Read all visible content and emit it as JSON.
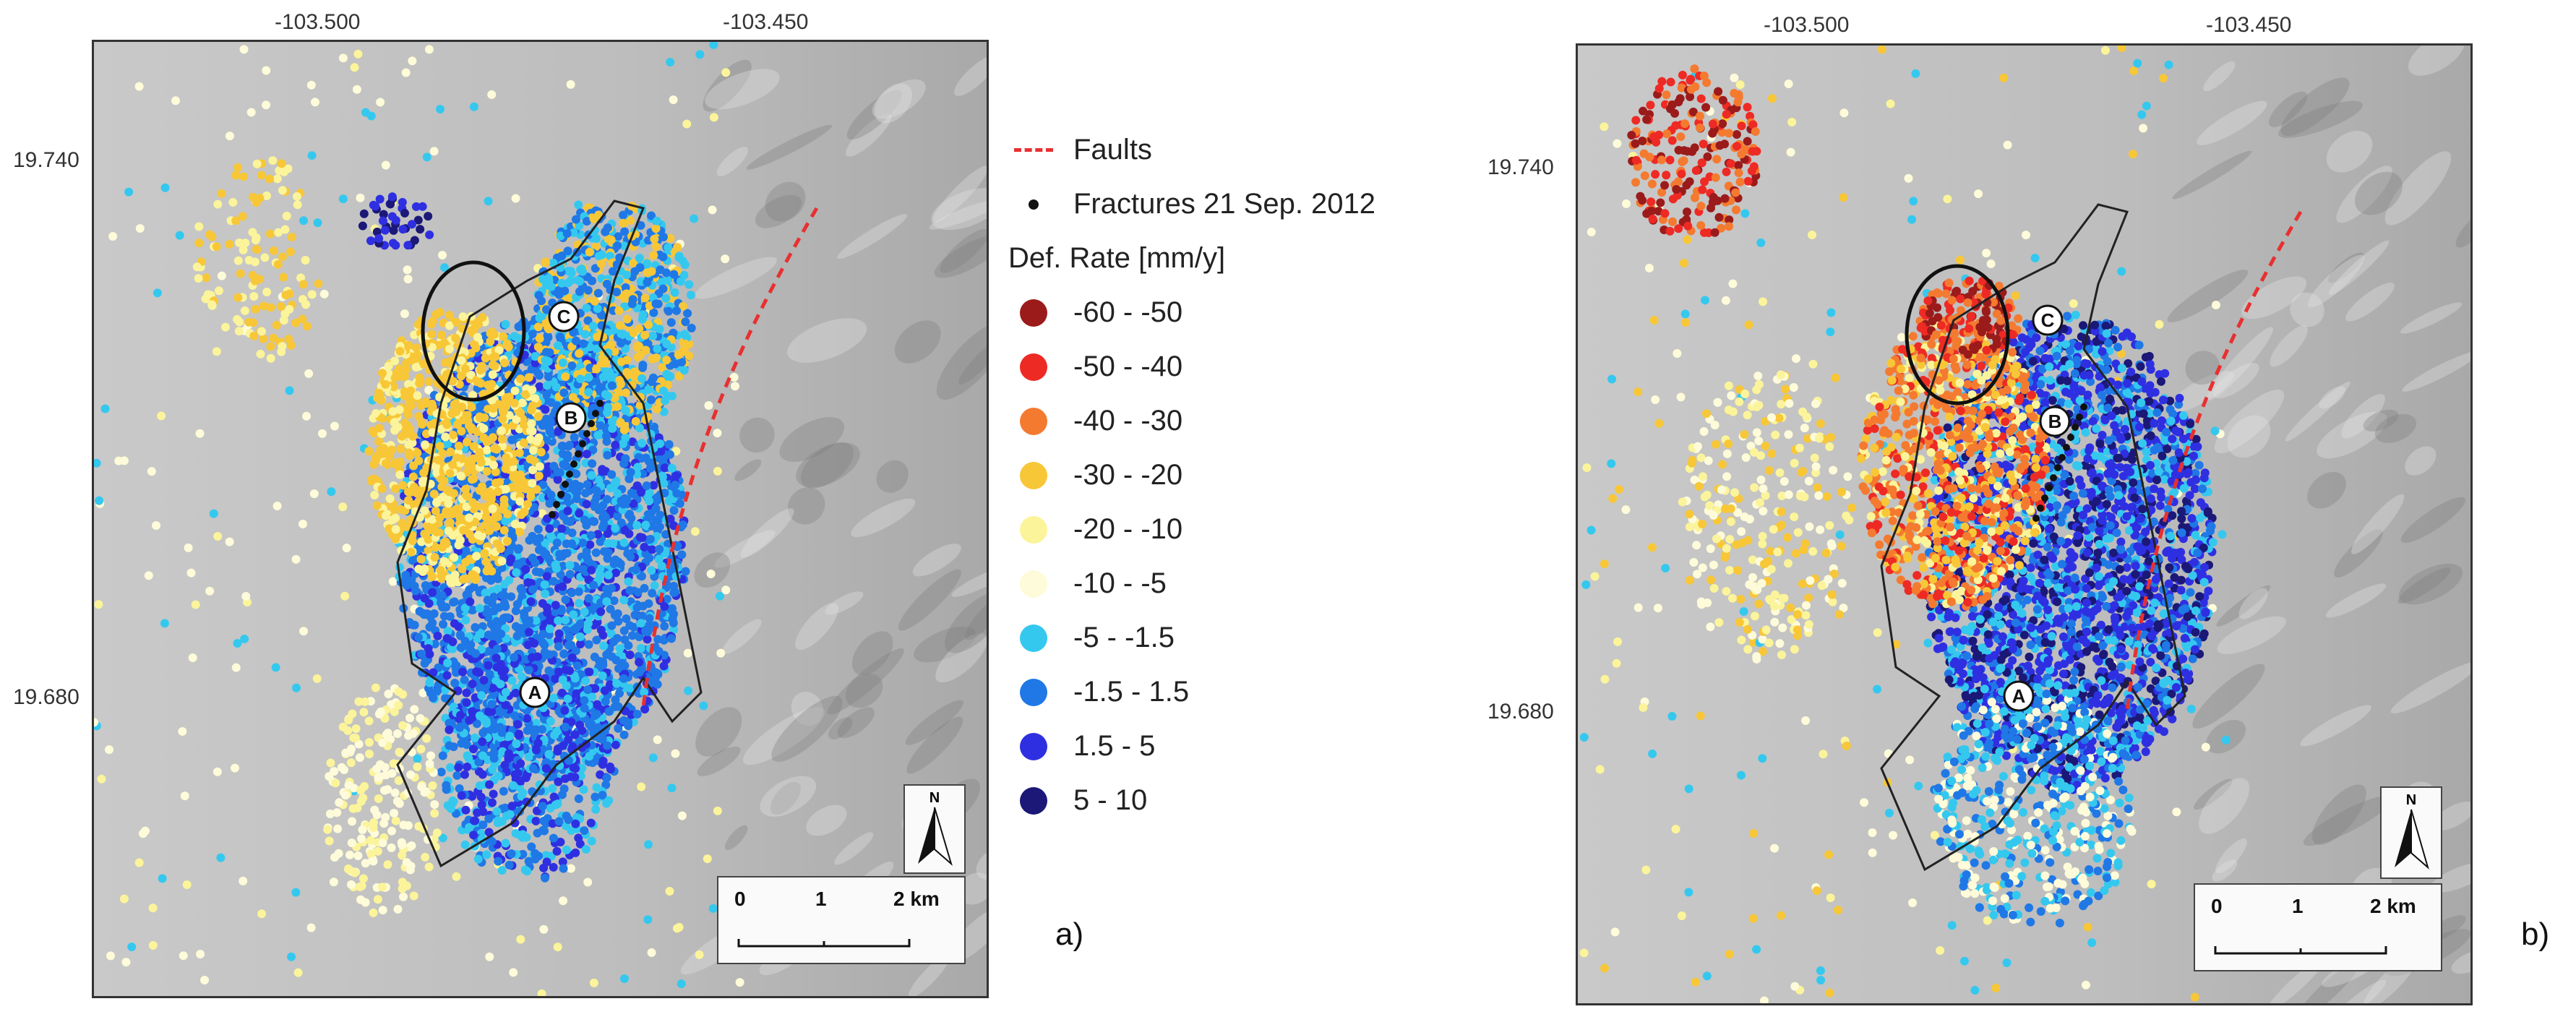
{
  "panels": [
    {
      "label": "a)",
      "x_ticks": [
        "-103.500",
        "-103.450"
      ],
      "y_ticks": [
        "19.740",
        "19.680"
      ],
      "site_labels": [
        "A",
        "B",
        "C"
      ],
      "north_label": "N",
      "scale": {
        "ticks": [
          "0",
          "1",
          "2 km"
        ]
      }
    },
    {
      "label": "b)",
      "x_ticks": [
        "-103.500",
        "-103.450"
      ],
      "y_ticks": [
        "19.740",
        "19.680"
      ],
      "site_labels": [
        "A",
        "B",
        "C"
      ],
      "north_label": "N",
      "scale": {
        "ticks": [
          "0",
          "1",
          "2 km"
        ]
      }
    }
  ],
  "legend": {
    "faults_label": "Faults",
    "fractures_label": "Fractures 21 Sep. 2012",
    "rate_title": "Def. Rate [mm/y]",
    "classes": [
      {
        "label": "-60 - -50",
        "color": "#9b1b1b"
      },
      {
        "label": "-50 - -40",
        "color": "#ee2a24"
      },
      {
        "label": "-40 - -30",
        "color": "#f47a30"
      },
      {
        "label": "-30 - -20",
        "color": "#f8c737"
      },
      {
        "label": "-20 - -10",
        "color": "#fbf49a"
      },
      {
        "label": "-10 - -5",
        "color": "#fdfbd9"
      },
      {
        "label": "-5 - -1.5",
        "color": "#35c8ef"
      },
      {
        "label": "-1.5 - 1.5",
        "color": "#1f78e6"
      },
      {
        "label": "1.5 - 5",
        "color": "#2f2fe2"
      },
      {
        "label": "5 - 10",
        "color": "#1b1878"
      }
    ]
  }
}
